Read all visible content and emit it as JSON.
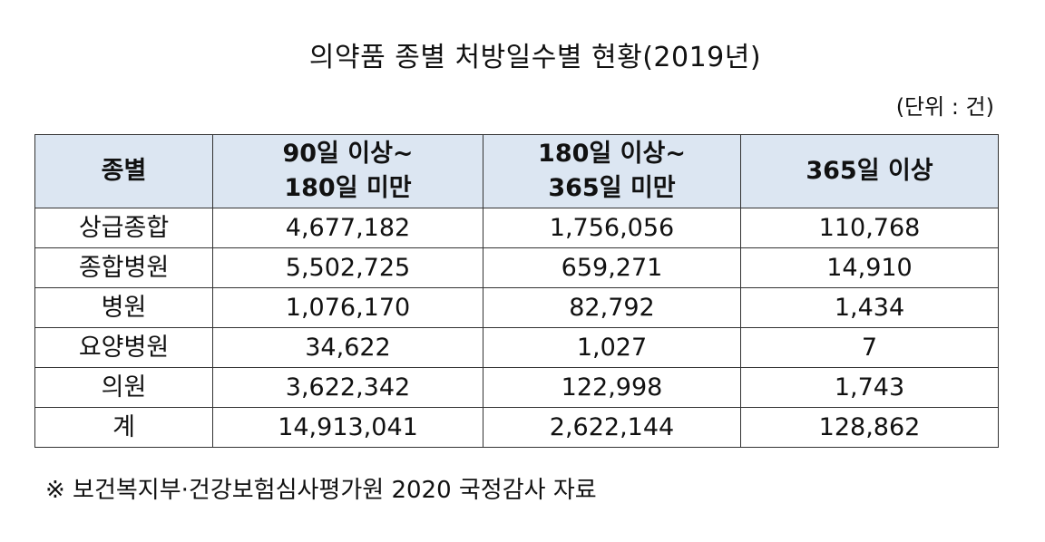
{
  "title": "의약품 종별 처방일수별 현황(2019년)",
  "unit_note": "(단위 : 건)",
  "table": {
    "headers": [
      {
        "lines": [
          "종별"
        ]
      },
      {
        "lines": [
          "90일 이상~",
          "180일 미만"
        ]
      },
      {
        "lines": [
          "180일 이상~",
          "365일 미만"
        ]
      },
      {
        "lines": [
          "365일 이상"
        ]
      }
    ],
    "rows": [
      {
        "category": "상급종합",
        "values": [
          "4,677,182",
          "1,756,056",
          "110,768"
        ]
      },
      {
        "category": "종합병원",
        "values": [
          "5,502,725",
          "659,271",
          "14,910"
        ]
      },
      {
        "category": "병원",
        "values": [
          "1,076,170",
          "82,792",
          "1,434"
        ]
      },
      {
        "category": "요양병원",
        "values": [
          "34,622",
          "1,027",
          "7"
        ]
      },
      {
        "category": "의원",
        "values": [
          "3,622,342",
          "122,998",
          "1,743"
        ]
      },
      {
        "category": "계",
        "values": [
          "14,913,041",
          "2,622,144",
          "128,862"
        ]
      }
    ]
  },
  "footnote": "※ 보건복지부·건강보험심사평가원 2020 국정감사 자료",
  "colors": {
    "header_background": "#dce6f2",
    "border": "#333333",
    "text": "#111111"
  }
}
